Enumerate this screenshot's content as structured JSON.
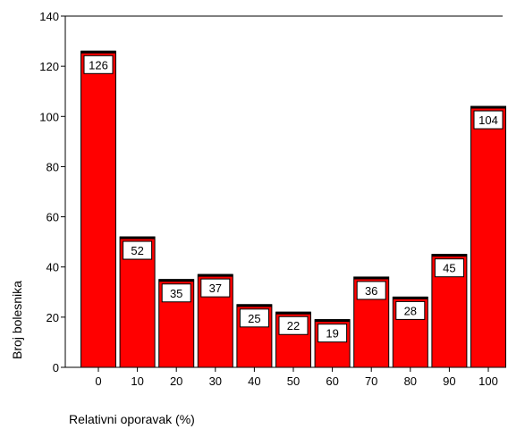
{
  "chart_data": {
    "type": "bar",
    "title": "",
    "xlabel": "Relativni oporavak (%)",
    "ylabel": "Broj bolesnika",
    "categories": [
      "0",
      "10",
      "20",
      "30",
      "40",
      "50",
      "60",
      "70",
      "80",
      "90",
      "100"
    ],
    "values": [
      126,
      52,
      35,
      37,
      25,
      22,
      19,
      36,
      28,
      45,
      104
    ],
    "data_labels": [
      "126",
      "52",
      "35",
      "37",
      "25",
      "22",
      "19",
      "36",
      "28",
      "45",
      "104"
    ],
    "ylim": [
      0,
      140
    ],
    "yticks": [
      0,
      20,
      40,
      60,
      80,
      100,
      120,
      140
    ],
    "ytick_labels": [
      "0",
      "20",
      "40",
      "60",
      "80",
      "100",
      "120",
      "140"
    ],
    "grid": false,
    "bar_color": "#ff0000",
    "bar_edge_color": "#000000"
  }
}
